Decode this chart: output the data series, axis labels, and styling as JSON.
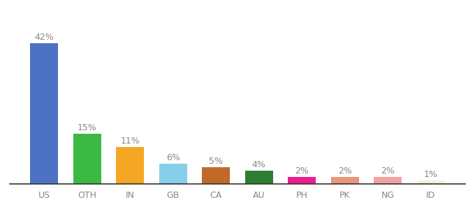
{
  "categories": [
    "US",
    "OTH",
    "IN",
    "GB",
    "CA",
    "AU",
    "PH",
    "PK",
    "NG",
    "ID"
  ],
  "values": [
    42,
    15,
    11,
    6,
    5,
    4,
    2,
    2,
    2,
    1
  ],
  "labels": [
    "42%",
    "15%",
    "11%",
    "6%",
    "5%",
    "4%",
    "2%",
    "2%",
    "2%",
    "1%"
  ],
  "bar_colors": [
    "#4d72c4",
    "#3cb844",
    "#f5a623",
    "#87ceeb",
    "#c0692a",
    "#2e7d32",
    "#e91e8c",
    "#e9967a",
    "#f4a0a0",
    "#f5f0dc"
  ],
  "label_fontsize": 9,
  "tick_fontsize": 9,
  "ylim": [
    0,
    50
  ],
  "background_color": "#ffffff",
  "bar_width": 0.65,
  "label_color": "#888888"
}
